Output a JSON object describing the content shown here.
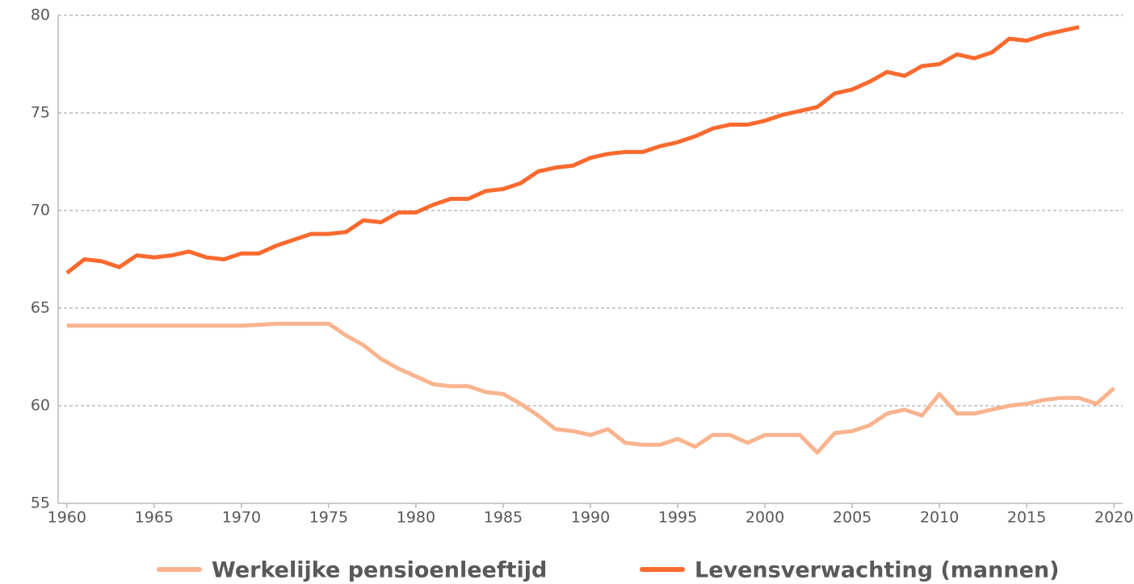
{
  "chart_data": {
    "type": "line",
    "x": [
      1960,
      1961,
      1962,
      1963,
      1964,
      1965,
      1966,
      1967,
      1968,
      1969,
      1970,
      1971,
      1972,
      1973,
      1974,
      1975,
      1976,
      1977,
      1978,
      1979,
      1980,
      1981,
      1982,
      1983,
      1984,
      1985,
      1986,
      1987,
      1988,
      1989,
      1990,
      1991,
      1992,
      1993,
      1994,
      1995,
      1996,
      1997,
      1998,
      1999,
      2000,
      2001,
      2002,
      2003,
      2004,
      2005,
      2006,
      2007,
      2008,
      2009,
      2010,
      2011,
      2012,
      2013,
      2014,
      2015,
      2016,
      2017,
      2018,
      2019,
      2020
    ],
    "series": [
      {
        "name": "Werkelijke pensioenleeftijd",
        "color": "#f9b48f",
        "values": [
          64.1,
          64.1,
          64.1,
          64.1,
          64.1,
          64.1,
          64.1,
          64.1,
          64.1,
          64.1,
          64.1,
          64.15,
          64.2,
          64.2,
          64.2,
          64.2,
          63.6,
          63.1,
          62.4,
          61.9,
          61.5,
          61.1,
          61.0,
          61.0,
          60.7,
          60.6,
          60.1,
          59.5,
          58.8,
          58.7,
          58.5,
          58.8,
          58.1,
          58.0,
          58.0,
          58.3,
          57.9,
          58.5,
          58.5,
          58.1,
          58.5,
          58.5,
          58.5,
          57.6,
          58.6,
          58.7,
          59.0,
          59.6,
          59.8,
          59.5,
          60.6,
          59.6,
          59.6,
          59.8,
          60.0,
          60.1,
          60.3,
          60.4,
          60.4,
          60.1,
          60.9
        ]
      },
      {
        "name": "Levensverwachting (mannen)",
        "color": "#fa6a2e",
        "values": [
          66.8,
          67.5,
          67.4,
          67.1,
          67.7,
          67.6,
          67.7,
          67.9,
          67.6,
          67.5,
          67.8,
          67.8,
          68.2,
          68.5,
          68.8,
          68.8,
          68.9,
          69.5,
          69.4,
          69.9,
          69.9,
          70.3,
          70.6,
          70.6,
          71.0,
          71.1,
          71.4,
          72.0,
          72.2,
          72.3,
          72.7,
          72.9,
          73.0,
          73.0,
          73.3,
          73.5,
          73.8,
          74.2,
          74.4,
          74.4,
          74.6,
          74.9,
          75.1,
          75.3,
          76.0,
          76.2,
          76.6,
          77.1,
          76.9,
          77.4,
          77.5,
          78.0,
          77.8,
          78.1,
          78.8,
          78.7,
          79.0,
          79.2,
          79.4,
          null,
          null
        ]
      }
    ],
    "xlim": [
      1959.5,
      2020.5
    ],
    "xticks": [
      1960,
      1965,
      1970,
      1975,
      1980,
      1985,
      1990,
      1995,
      2000,
      2005,
      2010,
      2015,
      2020
    ],
    "ylim": [
      55,
      80
    ],
    "yticks": [
      55,
      60,
      65,
      70,
      75,
      80
    ],
    "grid": true,
    "legend": "bottom"
  }
}
